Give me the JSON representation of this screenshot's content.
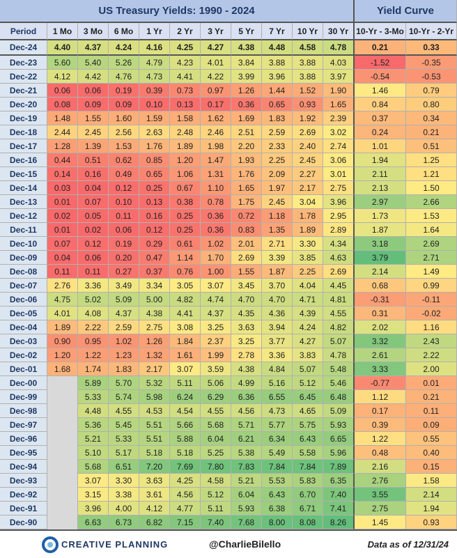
{
  "header": {
    "title": "US Treasury Yields: 1990 - 2024",
    "yield_curve_title": "Yield Curve"
  },
  "table": {
    "columns": [
      "Period",
      "1 Mo",
      "3 Mo",
      "6 Mo",
      "1 Yr",
      "2 Yr",
      "3 Yr",
      "5 Yr",
      "7 Yr",
      "10 Yr",
      "30 Yr",
      "10-Yr - 3-Mo",
      "10-Yr - 2-Yr"
    ],
    "rows": [
      [
        "Dec-24",
        "4.40",
        "4.37",
        "4.24",
        "4.16",
        "4.25",
        "4.27",
        "4.38",
        "4.48",
        "4.58",
        "4.78",
        "0.21",
        "0.33"
      ],
      [
        "Dec-23",
        "5.60",
        "5.40",
        "5.26",
        "4.79",
        "4.23",
        "4.01",
        "3.84",
        "3.88",
        "3.88",
        "4.03",
        "-1.52",
        "-0.35"
      ],
      [
        "Dec-22",
        "4.12",
        "4.42",
        "4.76",
        "4.73",
        "4.41",
        "4.22",
        "3.99",
        "3.96",
        "3.88",
        "3.97",
        "-0.54",
        "-0.53"
      ],
      [
        "Dec-21",
        "0.06",
        "0.06",
        "0.19",
        "0.39",
        "0.73",
        "0.97",
        "1.26",
        "1.44",
        "1.52",
        "1.90",
        "1.46",
        "0.79"
      ],
      [
        "Dec-20",
        "0.08",
        "0.09",
        "0.09",
        "0.10",
        "0.13",
        "0.17",
        "0.36",
        "0.65",
        "0.93",
        "1.65",
        "0.84",
        "0.80"
      ],
      [
        "Dec-19",
        "1.48",
        "1.55",
        "1.60",
        "1.59",
        "1.58",
        "1.62",
        "1.69",
        "1.83",
        "1.92",
        "2.39",
        "0.37",
        "0.34"
      ],
      [
        "Dec-18",
        "2.44",
        "2.45",
        "2.56",
        "2.63",
        "2.48",
        "2.46",
        "2.51",
        "2.59",
        "2.69",
        "3.02",
        "0.24",
        "0.21"
      ],
      [
        "Dec-17",
        "1.28",
        "1.39",
        "1.53",
        "1.76",
        "1.89",
        "1.98",
        "2.20",
        "2.33",
        "2.40",
        "2.74",
        "1.01",
        "0.51"
      ],
      [
        "Dec-16",
        "0.44",
        "0.51",
        "0.62",
        "0.85",
        "1.20",
        "1.47",
        "1.93",
        "2.25",
        "2.45",
        "3.06",
        "1.94",
        "1.25"
      ],
      [
        "Dec-15",
        "0.14",
        "0.16",
        "0.49",
        "0.65",
        "1.06",
        "1.31",
        "1.76",
        "2.09",
        "2.27",
        "3.01",
        "2.11",
        "1.21"
      ],
      [
        "Dec-14",
        "0.03",
        "0.04",
        "0.12",
        "0.25",
        "0.67",
        "1.10",
        "1.65",
        "1.97",
        "2.17",
        "2.75",
        "2.13",
        "1.50"
      ],
      [
        "Dec-13",
        "0.01",
        "0.07",
        "0.10",
        "0.13",
        "0.38",
        "0.78",
        "1.75",
        "2.45",
        "3.04",
        "3.96",
        "2.97",
        "2.66"
      ],
      [
        "Dec-12",
        "0.02",
        "0.05",
        "0.11",
        "0.16",
        "0.25",
        "0.36",
        "0.72",
        "1.18",
        "1.78",
        "2.95",
        "1.73",
        "1.53"
      ],
      [
        "Dec-11",
        "0.01",
        "0.02",
        "0.06",
        "0.12",
        "0.25",
        "0.36",
        "0.83",
        "1.35",
        "1.89",
        "2.89",
        "1.87",
        "1.64"
      ],
      [
        "Dec-10",
        "0.07",
        "0.12",
        "0.19",
        "0.29",
        "0.61",
        "1.02",
        "2.01",
        "2.71",
        "3.30",
        "4.34",
        "3.18",
        "2.69"
      ],
      [
        "Dec-09",
        "0.04",
        "0.06",
        "0.20",
        "0.47",
        "1.14",
        "1.70",
        "2.69",
        "3.39",
        "3.85",
        "4.63",
        "3.79",
        "2.71"
      ],
      [
        "Dec-08",
        "0.11",
        "0.11",
        "0.27",
        "0.37",
        "0.76",
        "1.00",
        "1.55",
        "1.87",
        "2.25",
        "2.69",
        "2.14",
        "1.49"
      ],
      [
        "Dec-07",
        "2.76",
        "3.36",
        "3.49",
        "3.34",
        "3.05",
        "3.07",
        "3.45",
        "3.70",
        "4.04",
        "4.45",
        "0.68",
        "0.99"
      ],
      [
        "Dec-06",
        "4.75",
        "5.02",
        "5.09",
        "5.00",
        "4.82",
        "4.74",
        "4.70",
        "4.70",
        "4.71",
        "4.81",
        "-0.31",
        "-0.11"
      ],
      [
        "Dec-05",
        "4.01",
        "4.08",
        "4.37",
        "4.38",
        "4.41",
        "4.37",
        "4.35",
        "4.36",
        "4.39",
        "4.55",
        "0.31",
        "-0.02"
      ],
      [
        "Dec-04",
        "1.89",
        "2.22",
        "2.59",
        "2.75",
        "3.08",
        "3.25",
        "3.63",
        "3.94",
        "4.24",
        "4.82",
        "2.02",
        "1.16"
      ],
      [
        "Dec-03",
        "0.90",
        "0.95",
        "1.02",
        "1.26",
        "1.84",
        "2.37",
        "3.25",
        "3.77",
        "4.27",
        "5.07",
        "3.32",
        "2.43"
      ],
      [
        "Dec-02",
        "1.20",
        "1.22",
        "1.23",
        "1.32",
        "1.61",
        "1.99",
        "2.78",
        "3.36",
        "3.83",
        "4.78",
        "2.61",
        "2.22"
      ],
      [
        "Dec-01",
        "1.68",
        "1.74",
        "1.83",
        "2.17",
        "3.07",
        "3.59",
        "4.38",
        "4.84",
        "5.07",
        "5.48",
        "3.33",
        "2.00"
      ],
      [
        "Dec-00",
        null,
        "5.89",
        "5.70",
        "5.32",
        "5.11",
        "5.06",
        "4.99",
        "5.16",
        "5.12",
        "5.46",
        "-0.77",
        "0.01"
      ],
      [
        "Dec-99",
        null,
        "5.33",
        "5.74",
        "5.98",
        "6.24",
        "6.29",
        "6.36",
        "6.55",
        "6.45",
        "6.48",
        "1.12",
        "0.21"
      ],
      [
        "Dec-98",
        null,
        "4.48",
        "4.55",
        "4.53",
        "4.54",
        "4.55",
        "4.56",
        "4.73",
        "4.65",
        "5.09",
        "0.17",
        "0.11"
      ],
      [
        "Dec-97",
        null,
        "5.36",
        "5.45",
        "5.51",
        "5.66",
        "5.68",
        "5.71",
        "5.77",
        "5.75",
        "5.93",
        "0.39",
        "0.09"
      ],
      [
        "Dec-96",
        null,
        "5.21",
        "5.33",
        "5.51",
        "5.88",
        "6.04",
        "6.21",
        "6.34",
        "6.43",
        "6.65",
        "1.22",
        "0.55"
      ],
      [
        "Dec-95",
        null,
        "5.10",
        "5.17",
        "5.18",
        "5.18",
        "5.25",
        "5.38",
        "5.49",
        "5.58",
        "5.96",
        "0.48",
        "0.40"
      ],
      [
        "Dec-94",
        null,
        "5.68",
        "6.51",
        "7.20",
        "7.69",
        "7.80",
        "7.83",
        "7.84",
        "7.84",
        "7.89",
        "2.16",
        "0.15"
      ],
      [
        "Dec-93",
        null,
        "3.07",
        "3.30",
        "3.63",
        "4.25",
        "4.58",
        "5.21",
        "5.53",
        "5.83",
        "6.35",
        "2.76",
        "1.58"
      ],
      [
        "Dec-92",
        null,
        "3.15",
        "3.38",
        "3.61",
        "4.56",
        "5.12",
        "6.04",
        "6.43",
        "6.70",
        "7.40",
        "3.55",
        "2.14"
      ],
      [
        "Dec-91",
        null,
        "3.96",
        "4.00",
        "4.12",
        "4.77",
        "5.11",
        "5.93",
        "6.38",
        "6.71",
        "7.41",
        "2.75",
        "1.94"
      ],
      [
        "Dec-90",
        null,
        "6.63",
        "6.73",
        "6.82",
        "7.15",
        "7.40",
        "7.68",
        "8.00",
        "8.08",
        "8.26",
        "1.45",
        "0.93"
      ]
    ]
  },
  "footer": {
    "logo": "CREATIVE PLANNING",
    "handle": "@CharlieBilello",
    "note": "Data as of 12/31/24"
  }
}
